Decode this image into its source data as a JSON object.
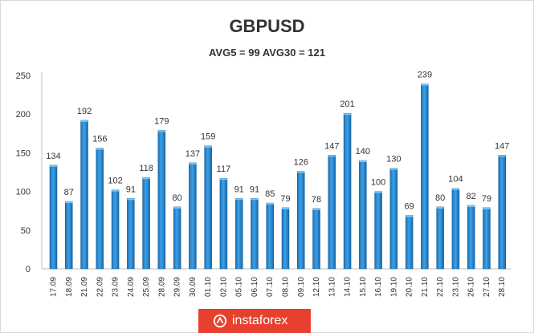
{
  "chart_data": {
    "type": "bar",
    "title": "GBPUSD",
    "subtitle": "AVG5 = 99 AVG30 = 121",
    "categories": [
      "17.09",
      "18.09",
      "21.09",
      "22.09",
      "23.09",
      "24.09",
      "25.09",
      "28.09",
      "29.09",
      "30.09",
      "01.10",
      "02.10",
      "05.10",
      "06.10",
      "07.10",
      "08.10",
      "09.10",
      "12.10",
      "13.10",
      "14.10",
      "15.10",
      "16.10",
      "19.10",
      "20.10",
      "21.10",
      "22.10",
      "23.10",
      "26.10",
      "27.10",
      "28.10"
    ],
    "values": [
      134,
      87,
      192,
      156,
      102,
      91,
      118,
      179,
      80,
      137,
      159,
      117,
      91,
      91,
      85,
      79,
      126,
      78,
      147,
      201,
      140,
      100,
      130,
      69,
      239,
      80,
      104,
      82,
      79,
      147
    ],
    "yticks": [
      "0",
      "50",
      "100",
      "150",
      "200",
      "250"
    ],
    "ylim": [
      0,
      250
    ],
    "grid": false,
    "bar_color": "#2a8fd8"
  },
  "branding": {
    "logo_text": "instaforex",
    "logo_color": "#e8402e"
  }
}
